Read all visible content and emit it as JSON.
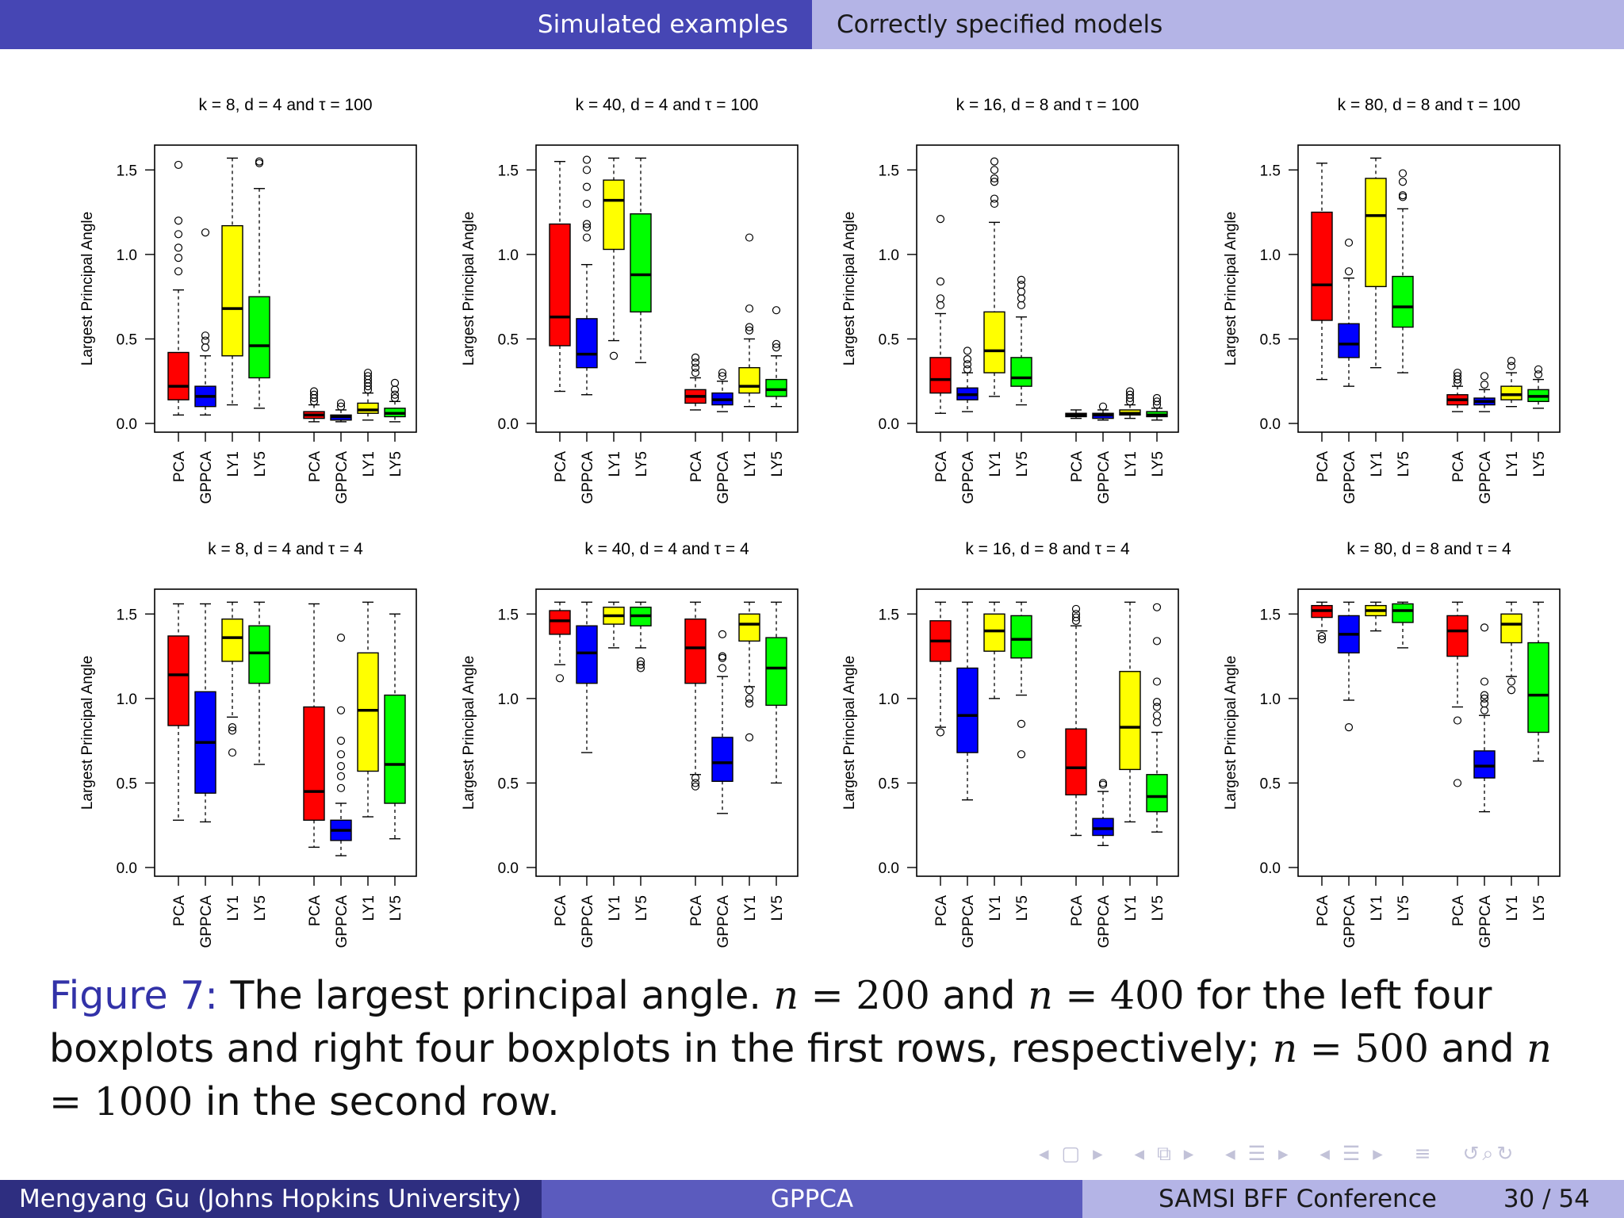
{
  "header": {
    "section": "Simulated examples",
    "subsection": "Correctly specified models"
  },
  "colors": {
    "PCA": "#ff0000",
    "GPPCA": "#0000ff",
    "LY1": "#ffff00",
    "LY5": "#00ff00",
    "header_dark": "#4646b4",
    "header_light": "#b4b4e6"
  },
  "chart_data": [
    {
      "type": "boxplot",
      "title": "k = 8, d = 4 and τ = 100",
      "ylabel": "Largest Principal Angle",
      "ylim": [
        0,
        1.6
      ],
      "yticks": [
        "0.0",
        "0.5",
        "1.0",
        "1.5"
      ],
      "categories": [
        "PCA",
        "GPPCA",
        "LY1",
        "LY5",
        "PCA",
        "GPPCA",
        "LY1",
        "LY5"
      ],
      "boxes": [
        {
          "lw": 0.05,
          "q1": 0.14,
          "med": 0.22,
          "q3": 0.42,
          "uw": 0.79,
          "out": [
            0.9,
            0.98,
            1.04,
            1.12,
            1.2,
            1.53
          ]
        },
        {
          "lw": 0.05,
          "q1": 0.1,
          "med": 0.16,
          "q3": 0.22,
          "uw": 0.4,
          "out": [
            0.45,
            0.49,
            0.52,
            1.13
          ]
        },
        {
          "lw": 0.11,
          "q1": 0.4,
          "med": 0.68,
          "q3": 1.17,
          "uw": 1.57,
          "out": []
        },
        {
          "lw": 0.09,
          "q1": 0.27,
          "med": 0.46,
          "q3": 0.75,
          "uw": 1.39,
          "out": [
            1.54,
            1.55
          ]
        },
        {
          "lw": 0.01,
          "q1": 0.03,
          "med": 0.05,
          "q3": 0.07,
          "uw": 0.11,
          "out": [
            0.13,
            0.15,
            0.17,
            0.19
          ]
        },
        {
          "lw": 0.01,
          "q1": 0.02,
          "med": 0.04,
          "q3": 0.05,
          "uw": 0.08,
          "out": [
            0.1,
            0.12
          ]
        },
        {
          "lw": 0.02,
          "q1": 0.06,
          "med": 0.08,
          "q3": 0.12,
          "uw": 0.18,
          "out": [
            0.2,
            0.22,
            0.24,
            0.26,
            0.28,
            0.3
          ]
        },
        {
          "lw": 0.01,
          "q1": 0.04,
          "med": 0.06,
          "q3": 0.09,
          "uw": 0.13,
          "out": [
            0.15,
            0.17,
            0.2,
            0.24
          ]
        }
      ]
    },
    {
      "type": "boxplot",
      "title": "k = 40, d = 4 and τ = 100",
      "ylabel": "Largest Principal Angle",
      "ylim": [
        0,
        1.6
      ],
      "yticks": [
        "0.0",
        "0.5",
        "1.0",
        "1.5"
      ],
      "categories": [
        "PCA",
        "GPPCA",
        "LY1",
        "LY5",
        "PCA",
        "GPPCA",
        "LY1",
        "LY5"
      ],
      "boxes": [
        {
          "lw": 0.19,
          "q1": 0.46,
          "med": 0.63,
          "q3": 1.18,
          "uw": 1.55,
          "out": []
        },
        {
          "lw": 0.17,
          "q1": 0.33,
          "med": 0.41,
          "q3": 0.62,
          "uw": 0.94,
          "out": [
            1.1,
            1.16,
            1.18,
            1.3,
            1.4,
            1.5,
            1.56
          ]
        },
        {
          "lw": 0.49,
          "q1": 1.03,
          "med": 1.32,
          "q3": 1.44,
          "uw": 1.57,
          "out": [
            0.4
          ]
        },
        {
          "lw": 0.36,
          "q1": 0.66,
          "med": 0.88,
          "q3": 1.24,
          "uw": 1.57,
          "out": []
        },
        {
          "lw": 0.08,
          "q1": 0.12,
          "med": 0.16,
          "q3": 0.2,
          "uw": 0.27,
          "out": [
            0.3,
            0.33,
            0.36,
            0.39
          ]
        },
        {
          "lw": 0.07,
          "q1": 0.11,
          "med": 0.14,
          "q3": 0.18,
          "uw": 0.25,
          "out": [
            0.28,
            0.3
          ]
        },
        {
          "lw": 0.1,
          "q1": 0.18,
          "med": 0.22,
          "q3": 0.33,
          "uw": 0.5,
          "out": [
            0.55,
            0.57,
            0.68,
            1.1
          ]
        },
        {
          "lw": 0.1,
          "q1": 0.16,
          "med": 0.2,
          "q3": 0.26,
          "uw": 0.4,
          "out": [
            0.45,
            0.47,
            0.67
          ]
        }
      ]
    },
    {
      "type": "boxplot",
      "title": "k = 16, d = 8 and τ = 100",
      "ylabel": "Largest Principal Angle",
      "ylim": [
        0,
        1.6
      ],
      "yticks": [
        "0.0",
        "0.5",
        "1.0",
        "1.5"
      ],
      "categories": [
        "PCA",
        "GPPCA",
        "LY1",
        "LY5",
        "PCA",
        "GPPCA",
        "LY1",
        "LY5"
      ],
      "boxes": [
        {
          "lw": 0.06,
          "q1": 0.18,
          "med": 0.26,
          "q3": 0.39,
          "uw": 0.65,
          "out": [
            0.7,
            0.74,
            0.84,
            1.21
          ]
        },
        {
          "lw": 0.07,
          "q1": 0.14,
          "med": 0.17,
          "q3": 0.21,
          "uw": 0.3,
          "out": [
            0.32,
            0.35,
            0.38,
            0.43
          ]
        },
        {
          "lw": 0.16,
          "q1": 0.3,
          "med": 0.43,
          "q3": 0.66,
          "uw": 1.19,
          "out": [
            1.3,
            1.33,
            1.43,
            1.45,
            1.5,
            1.55
          ]
        },
        {
          "lw": 0.11,
          "q1": 0.22,
          "med": 0.27,
          "q3": 0.39,
          "uw": 0.63,
          "out": [
            0.7,
            0.74,
            0.78,
            0.82,
            0.85
          ]
        },
        {
          "lw": 0.03,
          "q1": 0.04,
          "med": 0.05,
          "q3": 0.06,
          "uw": 0.08,
          "out": []
        },
        {
          "lw": 0.02,
          "q1": 0.03,
          "med": 0.05,
          "q3": 0.06,
          "uw": 0.08,
          "out": [
            0.1
          ]
        },
        {
          "lw": 0.03,
          "q1": 0.05,
          "med": 0.06,
          "q3": 0.08,
          "uw": 0.11,
          "out": [
            0.13,
            0.15,
            0.17,
            0.19
          ]
        },
        {
          "lw": 0.02,
          "q1": 0.04,
          "med": 0.05,
          "q3": 0.07,
          "uw": 0.09,
          "out": [
            0.11,
            0.13,
            0.15
          ]
        }
      ]
    },
    {
      "type": "boxplot",
      "title": "k = 80, d = 8 and τ = 100",
      "ylabel": "Largest Principal Angle",
      "ylim": [
        0,
        1.6
      ],
      "yticks": [
        "0.0",
        "0.5",
        "1.0",
        "1.5"
      ],
      "categories": [
        "PCA",
        "GPPCA",
        "LY1",
        "LY5",
        "PCA",
        "GPPCA",
        "LY1",
        "LY5"
      ],
      "boxes": [
        {
          "lw": 0.26,
          "q1": 0.61,
          "med": 0.82,
          "q3": 1.25,
          "uw": 1.54,
          "out": []
        },
        {
          "lw": 0.22,
          "q1": 0.39,
          "med": 0.47,
          "q3": 0.59,
          "uw": 0.86,
          "out": [
            0.9,
            1.07
          ]
        },
        {
          "lw": 0.33,
          "q1": 0.81,
          "med": 1.23,
          "q3": 1.45,
          "uw": 1.57,
          "out": []
        },
        {
          "lw": 0.3,
          "q1": 0.57,
          "med": 0.69,
          "q3": 0.87,
          "uw": 1.27,
          "out": [
            1.34,
            1.35,
            1.43,
            1.48
          ]
        },
        {
          "lw": 0.07,
          "q1": 0.11,
          "med": 0.14,
          "q3": 0.17,
          "uw": 0.22,
          "out": [
            0.24,
            0.26,
            0.28,
            0.3
          ]
        },
        {
          "lw": 0.07,
          "q1": 0.11,
          "med": 0.13,
          "q3": 0.15,
          "uw": 0.2,
          "out": [
            0.23,
            0.28
          ]
        },
        {
          "lw": 0.1,
          "q1": 0.14,
          "med": 0.17,
          "q3": 0.22,
          "uw": 0.3,
          "out": [
            0.34,
            0.37
          ]
        },
        {
          "lw": 0.09,
          "q1": 0.13,
          "med": 0.16,
          "q3": 0.2,
          "uw": 0.26,
          "out": [
            0.29,
            0.32
          ]
        }
      ]
    },
    {
      "type": "boxplot",
      "title": "k = 8, d = 4 and τ = 4",
      "ylabel": "Largest Principal Angle",
      "ylim": [
        0,
        1.6
      ],
      "yticks": [
        "0.0",
        "0.5",
        "1.0",
        "1.5"
      ],
      "categories": [
        "PCA",
        "GPPCA",
        "LY1",
        "LY5",
        "PCA",
        "GPPCA",
        "LY1",
        "LY5"
      ],
      "boxes": [
        {
          "lw": 0.28,
          "q1": 0.84,
          "med": 1.14,
          "q3": 1.37,
          "uw": 1.56,
          "out": []
        },
        {
          "lw": 0.27,
          "q1": 0.44,
          "med": 0.74,
          "q3": 1.04,
          "uw": 1.56,
          "out": []
        },
        {
          "lw": 0.89,
          "q1": 1.22,
          "med": 1.36,
          "q3": 1.47,
          "uw": 1.57,
          "out": [
            0.68,
            0.81,
            0.83
          ]
        },
        {
          "lw": 0.61,
          "q1": 1.09,
          "med": 1.27,
          "q3": 1.43,
          "uw": 1.57,
          "out": []
        },
        {
          "lw": 0.12,
          "q1": 0.28,
          "med": 0.45,
          "q3": 0.95,
          "uw": 1.56,
          "out": []
        },
        {
          "lw": 0.07,
          "q1": 0.16,
          "med": 0.22,
          "q3": 0.28,
          "uw": 0.38,
          "out": [
            0.47,
            0.54,
            0.6,
            0.67,
            0.75,
            0.93,
            1.36
          ]
        },
        {
          "lw": 0.3,
          "q1": 0.57,
          "med": 0.93,
          "q3": 1.27,
          "uw": 1.57,
          "out": []
        },
        {
          "lw": 0.17,
          "q1": 0.38,
          "med": 0.61,
          "q3": 1.02,
          "uw": 1.5,
          "out": []
        }
      ]
    },
    {
      "type": "boxplot",
      "title": "k = 40, d = 4 and τ = 4",
      "ylabel": "Largest Principal Angle",
      "ylim": [
        0,
        1.6
      ],
      "yticks": [
        "0.0",
        "0.5",
        "1.0",
        "1.5"
      ],
      "categories": [
        "PCA",
        "GPPCA",
        "LY1",
        "LY5",
        "PCA",
        "GPPCA",
        "LY1",
        "LY5"
      ],
      "boxes": [
        {
          "lw": 1.2,
          "q1": 1.38,
          "med": 1.46,
          "q3": 1.52,
          "uw": 1.57,
          "out": [
            1.12
          ]
        },
        {
          "lw": 0.68,
          "q1": 1.09,
          "med": 1.27,
          "q3": 1.43,
          "uw": 1.57,
          "out": []
        },
        {
          "lw": 1.3,
          "q1": 1.44,
          "med": 1.49,
          "q3": 1.54,
          "uw": 1.57,
          "out": []
        },
        {
          "lw": 1.3,
          "q1": 1.43,
          "med": 1.49,
          "q3": 1.54,
          "uw": 1.57,
          "out": [
            1.18,
            1.2,
            1.22
          ]
        },
        {
          "lw": 0.55,
          "q1": 1.09,
          "med": 1.3,
          "q3": 1.47,
          "uw": 1.57,
          "out": [
            0.48,
            0.5,
            0.53
          ]
        },
        {
          "lw": 0.32,
          "q1": 0.51,
          "med": 0.62,
          "q3": 0.77,
          "uw": 1.13,
          "out": [
            1.18,
            1.24,
            1.25,
            1.38
          ]
        },
        {
          "lw": 1.07,
          "q1": 1.34,
          "med": 1.44,
          "q3": 1.5,
          "uw": 1.57,
          "out": [
            0.77,
            0.97,
            1.0,
            1.05
          ]
        },
        {
          "lw": 0.5,
          "q1": 0.96,
          "med": 1.18,
          "q3": 1.36,
          "uw": 1.57,
          "out": []
        }
      ]
    },
    {
      "type": "boxplot",
      "title": "k = 16, d = 8 and τ = 4",
      "ylabel": "Largest Principal Angle",
      "ylim": [
        0,
        1.6
      ],
      "yticks": [
        "0.0",
        "0.5",
        "1.0",
        "1.5"
      ],
      "categories": [
        "PCA",
        "GPPCA",
        "LY1",
        "LY5",
        "PCA",
        "GPPCA",
        "LY1",
        "LY5"
      ],
      "boxes": [
        {
          "lw": 0.83,
          "q1": 1.22,
          "med": 1.34,
          "q3": 1.46,
          "uw": 1.57,
          "out": [
            0.8
          ]
        },
        {
          "lw": 0.4,
          "q1": 0.68,
          "med": 0.9,
          "q3": 1.18,
          "uw": 1.57,
          "out": []
        },
        {
          "lw": 1.0,
          "q1": 1.28,
          "med": 1.4,
          "q3": 1.5,
          "uw": 1.57,
          "out": []
        },
        {
          "lw": 1.02,
          "q1": 1.24,
          "med": 1.35,
          "q3": 1.49,
          "uw": 1.57,
          "out": [
            0.67,
            0.85
          ]
        },
        {
          "lw": 0.19,
          "q1": 0.43,
          "med": 0.59,
          "q3": 0.82,
          "uw": 1.43,
          "out": [
            1.46,
            1.48,
            1.5,
            1.53
          ]
        },
        {
          "lw": 0.13,
          "q1": 0.19,
          "med": 0.23,
          "q3": 0.29,
          "uw": 0.45,
          "out": [
            0.49,
            0.5
          ]
        },
        {
          "lw": 0.27,
          "q1": 0.58,
          "med": 0.83,
          "q3": 1.16,
          "uw": 1.57,
          "out": []
        },
        {
          "lw": 0.21,
          "q1": 0.33,
          "med": 0.42,
          "q3": 0.55,
          "uw": 0.8,
          "out": [
            0.86,
            0.9,
            0.95,
            0.98,
            1.1,
            1.34,
            1.54
          ]
        }
      ]
    },
    {
      "type": "boxplot",
      "title": "k = 80, d = 8 and τ = 4",
      "ylabel": "Largest Principal Angle",
      "ylim": [
        0,
        1.6
      ],
      "yticks": [
        "0.0",
        "0.5",
        "1.0",
        "1.5"
      ],
      "categories": [
        "PCA",
        "GPPCA",
        "LY1",
        "LY5",
        "PCA",
        "GPPCA",
        "LY1",
        "LY5"
      ],
      "boxes": [
        {
          "lw": 1.4,
          "q1": 1.48,
          "med": 1.52,
          "q3": 1.55,
          "uw": 1.57,
          "out": [
            1.35,
            1.37
          ]
        },
        {
          "lw": 0.99,
          "q1": 1.27,
          "med": 1.38,
          "q3": 1.49,
          "uw": 1.57,
          "out": [
            0.83
          ]
        },
        {
          "lw": 1.4,
          "q1": 1.49,
          "med": 1.52,
          "q3": 1.55,
          "uw": 1.57,
          "out": []
        },
        {
          "lw": 1.3,
          "q1": 1.45,
          "med": 1.52,
          "q3": 1.56,
          "uw": 1.57,
          "out": []
        },
        {
          "lw": 0.95,
          "q1": 1.25,
          "med": 1.4,
          "q3": 1.49,
          "uw": 1.57,
          "out": [
            0.5,
            0.87
          ]
        },
        {
          "lw": 0.33,
          "q1": 0.53,
          "med": 0.6,
          "q3": 0.69,
          "uw": 0.9,
          "out": [
            0.93,
            0.97,
            1.0,
            1.02,
            1.1,
            1.42
          ]
        },
        {
          "lw": 1.13,
          "q1": 1.33,
          "med": 1.44,
          "q3": 1.5,
          "uw": 1.57,
          "out": [
            1.05,
            1.1
          ]
        },
        {
          "lw": 0.63,
          "q1": 0.8,
          "med": 1.02,
          "q3": 1.33,
          "uw": 1.57,
          "out": []
        }
      ]
    }
  ],
  "caption": {
    "fig_label": "Figure 7:",
    "t1": " The largest principal angle. ",
    "m1": "n",
    "e1": " = ",
    "v1": "200",
    "t2": " and ",
    "m2": "n",
    "e2": " = ",
    "v2": "400",
    "t3": " for the left four boxplots and right four boxplots in the first rows, respectively; ",
    "m3": "n",
    "e3": " = ",
    "v3": "500",
    "t4": " and ",
    "m4": "n",
    "e4": " = ",
    "v4": "1000",
    "t5": " in the second row."
  },
  "footer": {
    "author": "Mengyang Gu  (Johns Hopkins University)",
    "title": "GPPCA",
    "conference": "SAMSI BFF Conference",
    "page": "30 / 54"
  }
}
